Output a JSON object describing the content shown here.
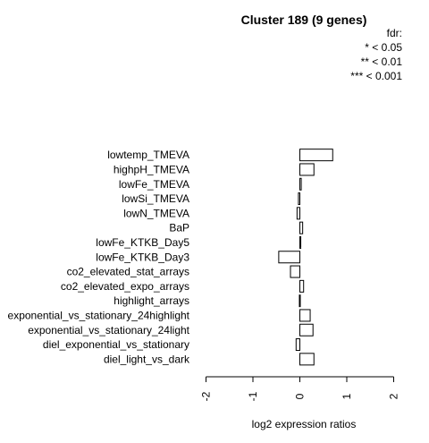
{
  "chart_data": {
    "type": "bar",
    "orientation": "horizontal",
    "title": "Cluster 189 (9 genes)",
    "xlabel": "log2 expression ratios",
    "ylabel": "",
    "xlim": [
      -2,
      2
    ],
    "xticks": [
      -2,
      -1,
      0,
      1,
      2
    ],
    "grid": false,
    "legend": {
      "placement": "top-right",
      "entries": [
        "fdr:",
        "* < 0.05",
        "** < 0.01",
        "*** < 0.001"
      ]
    },
    "categories": [
      "lowtemp_TMEVA",
      "highpH_TMEVA",
      "lowFe_TMEVA",
      "lowSi_TMEVA",
      "lowN_TMEVA",
      "BaP",
      "lowFe_KTKB_Day5",
      "lowFe_KTKB_Day3",
      "co2_elevated_stat_arrays",
      "co2_elevated_expo_arrays",
      "highlight_arrays",
      "exponential_vs_stationary_24highlight",
      "exponential_vs_stationary_24light",
      "diel_exponential_vs_stationary",
      "diel_light_vs_dark"
    ],
    "values": [
      0.7,
      0.3,
      0.03,
      -0.03,
      -0.06,
      0.06,
      0.02,
      -0.45,
      -0.2,
      0.08,
      -0.01,
      0.22,
      0.28,
      -0.08,
      0.3
    ]
  }
}
